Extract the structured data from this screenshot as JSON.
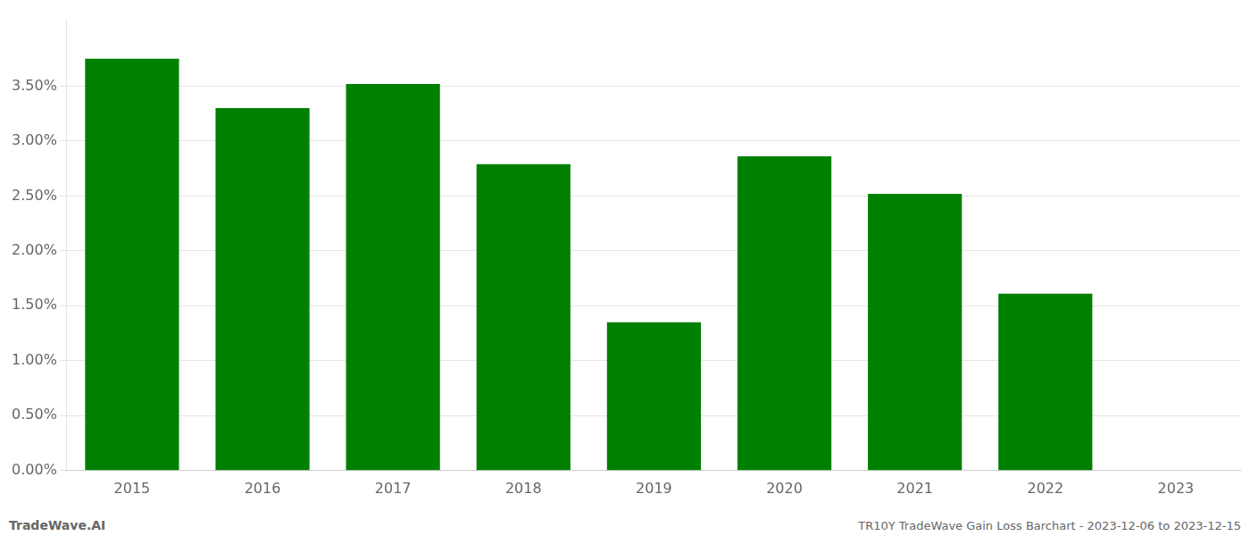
{
  "chart_data": {
    "type": "bar",
    "categories": [
      "2015",
      "2016",
      "2017",
      "2018",
      "2019",
      "2020",
      "2021",
      "2022",
      "2023"
    ],
    "values": [
      3.75,
      3.3,
      3.52,
      2.79,
      1.35,
      2.86,
      2.52,
      1.61,
      0.0
    ],
    "color": "#008000",
    "ylim": [
      0,
      4.1
    ],
    "yticks": [
      {
        "value": 0.0,
        "label": "0.00%"
      },
      {
        "value": 0.5,
        "label": "0.50%"
      },
      {
        "value": 1.0,
        "label": "1.00%"
      },
      {
        "value": 1.5,
        "label": "1.50%"
      },
      {
        "value": 2.0,
        "label": "2.00%"
      },
      {
        "value": 2.5,
        "label": "2.50%"
      },
      {
        "value": 3.0,
        "label": "3.00%"
      },
      {
        "value": 3.5,
        "label": "3.50%"
      }
    ],
    "grid": true,
    "annotations": [
      "TradeWave.AI",
      "TR10Y TradeWave Gain Loss Barchart - 2023-12-06 to 2023-12-15"
    ]
  }
}
